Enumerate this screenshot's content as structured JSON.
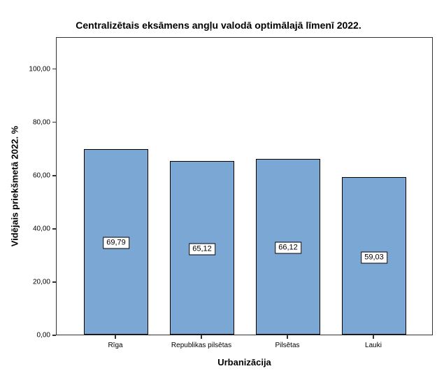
{
  "chart_data": {
    "type": "bar",
    "title": "Centralizētais eksāmens angļu valodā optimālajā līmenī 2022.",
    "xlabel": "Urbanizācija",
    "ylabel": "Vidējais priekšmetā 2022. %",
    "categories": [
      "Rīga",
      "Republikas pilsētas",
      "Pilsētas",
      "Lauki"
    ],
    "values": [
      69.79,
      65.12,
      66.12,
      59.03
    ],
    "value_labels": [
      "69,79",
      "65,12",
      "66,12",
      "59,03"
    ],
    "y_ticks": [
      0,
      20,
      40,
      60,
      80,
      100
    ],
    "y_tick_labels": [
      "0,00",
      "20,00",
      "40,00",
      "60,00",
      "80,00",
      "100,00"
    ],
    "ylim": [
      0,
      112
    ],
    "grid": false,
    "legend": "none",
    "colors": {
      "bar_fill": "#7BA7D4",
      "bar_border": "#000000",
      "frame": "#333333",
      "label_box_bg": "#ffffff",
      "label_box_border": "#000000"
    }
  }
}
